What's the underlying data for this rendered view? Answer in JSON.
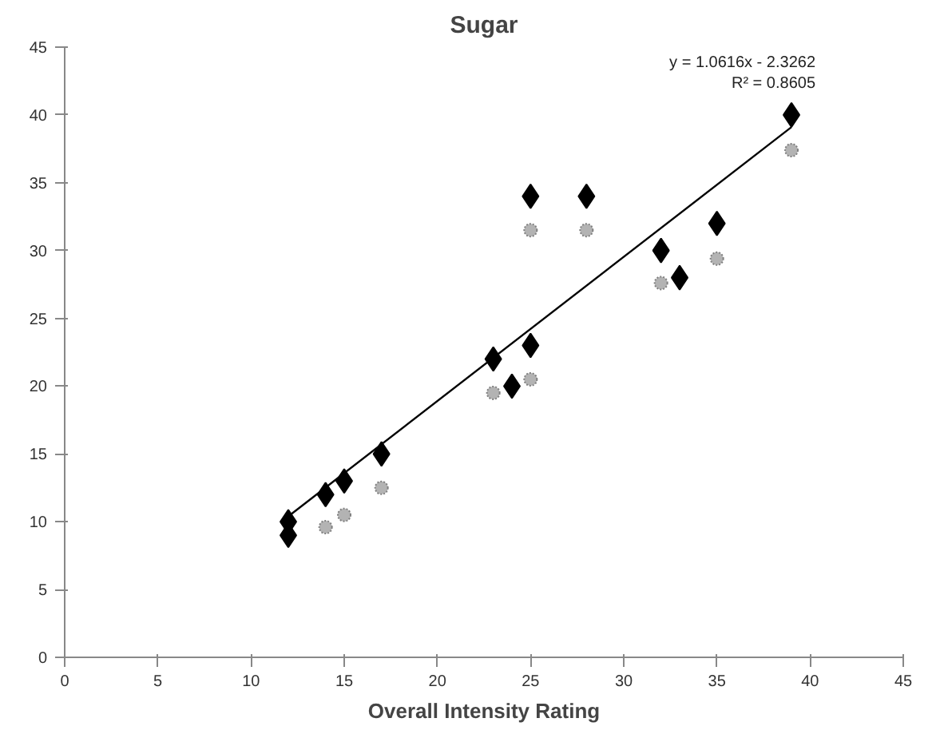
{
  "chart_data": {
    "type": "scatter",
    "title": "Sugar",
    "xlabel": "Overall Intensity Rating",
    "xlim": [
      0,
      45
    ],
    "xticks": [
      0,
      5,
      10,
      15,
      20,
      25,
      30,
      35,
      40,
      45
    ],
    "ylim": [
      0,
      45
    ],
    "yticks": [
      0,
      5,
      10,
      15,
      20,
      25,
      30,
      35,
      40,
      45
    ],
    "series": [
      {
        "marker": "diamond",
        "color": "#000000",
        "x": [
          12,
          12,
          14,
          15,
          17,
          23,
          24,
          25,
          25,
          28,
          32,
          33,
          35,
          39
        ],
        "values": [
          10,
          9,
          12,
          13,
          15,
          22,
          20,
          23,
          34,
          34,
          30,
          28,
          32,
          40
        ]
      },
      {
        "marker": "circle",
        "color": "#808080",
        "x": [
          14,
          15,
          17,
          23,
          25,
          25,
          28,
          32,
          35,
          39
        ],
        "values": [
          9.6,
          10.5,
          12.5,
          19.5,
          20.5,
          31.5,
          31.5,
          27.6,
          29.4,
          37.4
        ]
      },
      {
        "type": "line",
        "color": "#000000",
        "x": [
          12,
          39
        ],
        "values": [
          10.4,
          39.1
        ]
      }
    ],
    "annotations": [
      "y = 1.0616x - 2.3262\nR² = 0.8605"
    ]
  }
}
